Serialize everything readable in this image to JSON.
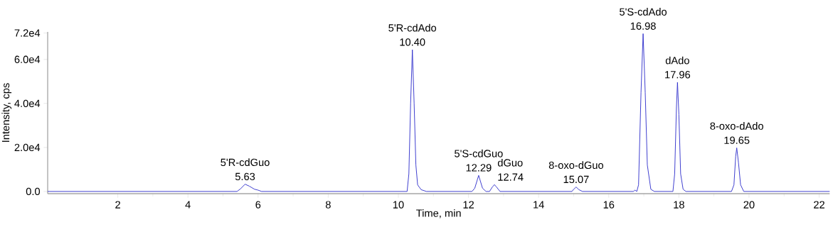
{
  "chart_data": {
    "type": "line",
    "xlabel": "Time, min",
    "ylabel": "Intensity, cps",
    "x": [
      0,
      1,
      2,
      3,
      4,
      5,
      5.4,
      5.5,
      5.63,
      5.75,
      5.9,
      6.0,
      6.1,
      7,
      8,
      9,
      10,
      10.25,
      10.3,
      10.35,
      10.4,
      10.45,
      10.5,
      10.55,
      10.65,
      10.8,
      12.1,
      12.18,
      12.29,
      12.4,
      12.5,
      12.6,
      12.68,
      12.74,
      12.8,
      12.9,
      14.95,
      15.0,
      15.07,
      15.15,
      15.25,
      16.7,
      16.75,
      16.8,
      16.85,
      16.92,
      16.98,
      17.04,
      17.1,
      17.2,
      17.3,
      17.83,
      17.88,
      17.93,
      17.96,
      18.0,
      18.05,
      18.12,
      18.2,
      19.5,
      19.57,
      19.62,
      19.65,
      19.7,
      19.76,
      19.85,
      22.3
    ],
    "series": [
      {
        "color": "#3333cc",
        "values": [
          0,
          0,
          0,
          0,
          0,
          0,
          0,
          1200,
          3300,
          2400,
          1000,
          600,
          0,
          0,
          0,
          0,
          0,
          0,
          8000,
          40000,
          64400,
          40000,
          12000,
          3000,
          800,
          0,
          0,
          1500,
          7300,
          1500,
          0,
          0,
          2000,
          3100,
          2000,
          0,
          0,
          1000,
          2000,
          800,
          0,
          0,
          600,
          0,
          3000,
          45000,
          71700,
          45000,
          12000,
          1000,
          0,
          0,
          8000,
          38000,
          49600,
          35000,
          8000,
          1000,
          0,
          0,
          3000,
          16000,
          19800,
          13000,
          3000,
          0,
          0
        ]
      }
    ],
    "xlim": [
      0,
      22.3
    ],
    "ylim": [
      -1000,
      72500
    ],
    "xticks": [
      2,
      4,
      6,
      8,
      10,
      12,
      14,
      16,
      18,
      20,
      22
    ],
    "yticks": [
      {
        "value": 0,
        "label": "0.0"
      },
      {
        "value": 20000,
        "label": "2.0e4"
      },
      {
        "value": 40000,
        "label": "4.0e4"
      },
      {
        "value": 60000,
        "label": "6.0e4"
      },
      {
        "value": 72000,
        "label": "7.2e4"
      }
    ],
    "grid": false,
    "marker": "none",
    "line_style": "solid",
    "annotations": [
      {
        "text": "5'R-cdGuo",
        "x": 5.63,
        "y": 3300
      },
      {
        "text": "5.63",
        "x": 5.63,
        "y": 3300
      },
      {
        "text": "5'R-cdAdo",
        "x": 10.4,
        "y": 64400
      },
      {
        "text": "10.40",
        "x": 10.4,
        "y": 64400
      },
      {
        "text": "5'S-cdGuo",
        "x": 12.29,
        "y": 7300
      },
      {
        "text": "12.29",
        "x": 12.29,
        "y": 7300
      },
      {
        "text": "dGuo",
        "x": 12.74,
        "y": 3100
      },
      {
        "text": "12.74",
        "x": 12.74,
        "y": 3100
      },
      {
        "text": "8-oxo-dGuo",
        "x": 15.07,
        "y": 2000
      },
      {
        "text": "15.07",
        "x": 15.07,
        "y": 2000
      },
      {
        "text": "5'S-cdAdo",
        "x": 16.98,
        "y": 71700
      },
      {
        "text": "16.98",
        "x": 16.98,
        "y": 71700
      },
      {
        "text": "dAdo",
        "x": 17.96,
        "y": 49600
      },
      {
        "text": "17.96",
        "x": 17.96,
        "y": 49600
      },
      {
        "text": "8-oxo-dAdo",
        "x": 19.65,
        "y": 19800
      },
      {
        "text": "19.65",
        "x": 19.65,
        "y": 19800
      }
    ]
  }
}
